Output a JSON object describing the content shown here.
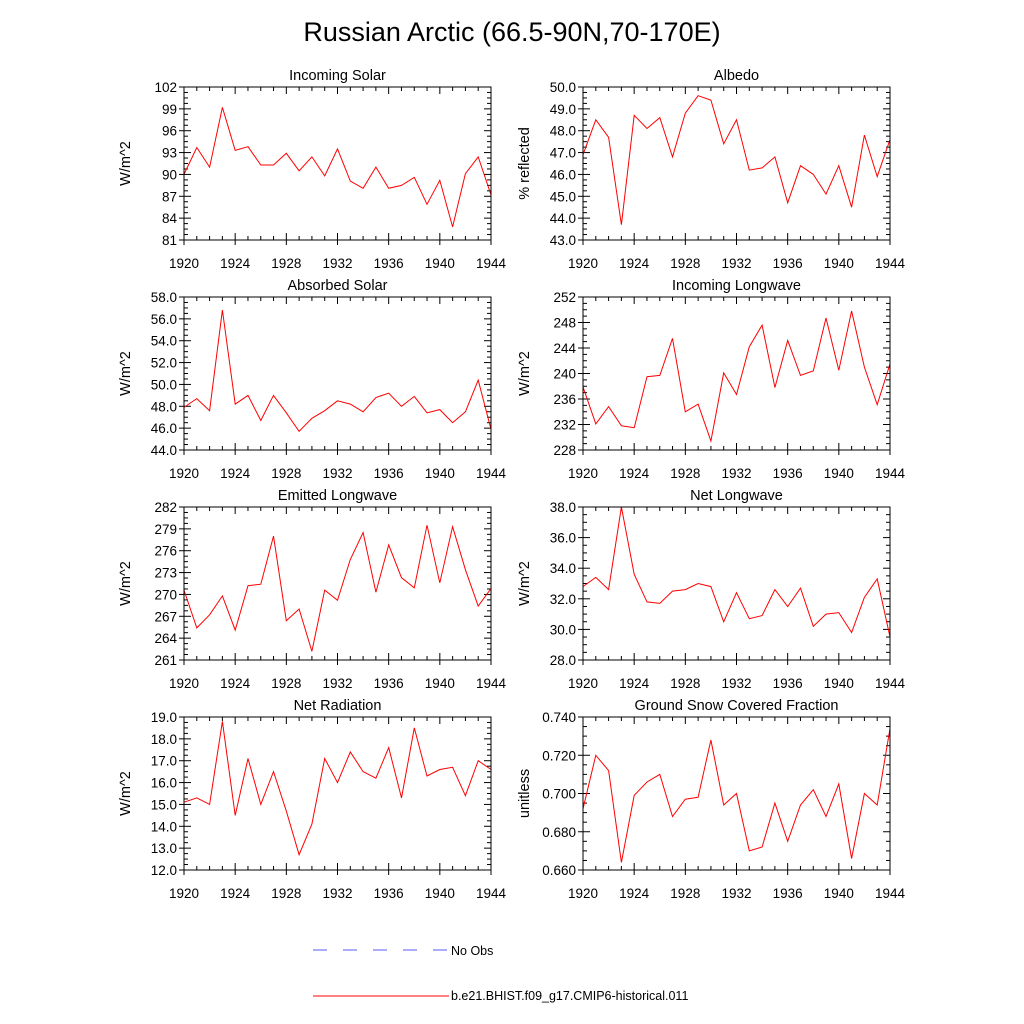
{
  "title": "Russian Arctic (66.5-90N,70-170E)",
  "legend": [
    {
      "label": "No Obs",
      "color": "#5a5aff",
      "dash": true
    },
    {
      "label": "b.e21.BHIST.f09_g17.CMIP6-historical.011",
      "color": "#ff0000",
      "dash": false
    }
  ],
  "line_color": "#ff0000",
  "chart_data": [
    {
      "type": "line",
      "title": "Incoming Solar",
      "xlabel": "",
      "ylabel": "W/m^2",
      "xlim": [
        1920,
        1944
      ],
      "ylim": [
        81,
        102
      ],
      "xticks": [
        "1920",
        "1924",
        "1928",
        "1932",
        "1936",
        "1940",
        "1944"
      ],
      "yticks": [
        "81",
        "84",
        "87",
        "90",
        "93",
        "96",
        "99",
        "102"
      ],
      "x": [
        1920,
        1921,
        1922,
        1923,
        1924,
        1925,
        1926,
        1927,
        1928,
        1929,
        1930,
        1931,
        1932,
        1933,
        1934,
        1935,
        1936,
        1937,
        1938,
        1939,
        1940,
        1941,
        1942,
        1943,
        1944
      ],
      "series": [
        {
          "name": "b.e21.BHIST.f09_g17.CMIP6-historical.011",
          "values": [
            90.0,
            93.7,
            91.0,
            99.2,
            93.3,
            93.8,
            91.3,
            91.3,
            92.9,
            90.5,
            92.4,
            89.8,
            93.5,
            89.1,
            88.1,
            91.0,
            88.1,
            88.5,
            89.6,
            85.9,
            89.2,
            82.8,
            90.1,
            92.4,
            87.2
          ]
        }
      ]
    },
    {
      "type": "line",
      "title": "Albedo",
      "xlabel": "",
      "ylabel": "% reflected",
      "xlim": [
        1920,
        1944
      ],
      "ylim": [
        43.0,
        50.0
      ],
      "xticks": [
        "1920",
        "1924",
        "1928",
        "1932",
        "1936",
        "1940",
        "1944"
      ],
      "yticks": [
        "43.0",
        "44.0",
        "45.0",
        "46.0",
        "47.0",
        "48.0",
        "49.0",
        "50.0"
      ],
      "x": [
        1920,
        1921,
        1922,
        1923,
        1924,
        1925,
        1926,
        1927,
        1928,
        1929,
        1930,
        1931,
        1932,
        1933,
        1934,
        1935,
        1936,
        1937,
        1938,
        1939,
        1940,
        1941,
        1942,
        1943,
        1944
      ],
      "series": [
        {
          "name": "b.e21.BHIST.f09_g17.CMIP6-historical.011",
          "values": [
            46.9,
            48.5,
            47.7,
            43.7,
            48.7,
            48.1,
            48.6,
            46.8,
            48.8,
            49.6,
            49.4,
            47.4,
            48.5,
            46.2,
            46.3,
            46.8,
            44.7,
            46.4,
            46.0,
            45.1,
            46.4,
            44.5,
            47.8,
            45.9,
            47.6
          ]
        }
      ]
    },
    {
      "type": "line",
      "title": "Absorbed Solar",
      "xlabel": "",
      "ylabel": "W/m^2",
      "xlim": [
        1920,
        1944
      ],
      "ylim": [
        44.0,
        58.0
      ],
      "xticks": [
        "1920",
        "1924",
        "1928",
        "1932",
        "1936",
        "1940",
        "1944"
      ],
      "yticks": [
        "44.0",
        "46.0",
        "48.0",
        "50.0",
        "52.0",
        "54.0",
        "56.0",
        "58.0"
      ],
      "x": [
        1920,
        1921,
        1922,
        1923,
        1924,
        1925,
        1926,
        1927,
        1928,
        1929,
        1930,
        1931,
        1932,
        1933,
        1934,
        1935,
        1936,
        1937,
        1938,
        1939,
        1940,
        1941,
        1942,
        1943,
        1944
      ],
      "series": [
        {
          "name": "b.e21.BHIST.f09_g17.CMIP6-historical.011",
          "values": [
            47.9,
            48.7,
            47.6,
            56.8,
            48.2,
            49.0,
            46.7,
            49.0,
            47.4,
            45.7,
            46.9,
            47.6,
            48.5,
            48.2,
            47.5,
            48.8,
            49.2,
            48.0,
            48.9,
            47.4,
            47.7,
            46.5,
            47.5,
            50.4,
            45.9
          ]
        }
      ]
    },
    {
      "type": "line",
      "title": "Incoming Longwave",
      "xlabel": "",
      "ylabel": "W/m^2",
      "xlim": [
        1920,
        1944
      ],
      "ylim": [
        228,
        252
      ],
      "xticks": [
        "1920",
        "1924",
        "1928",
        "1932",
        "1936",
        "1940",
        "1944"
      ],
      "yticks": [
        "228",
        "232",
        "236",
        "240",
        "244",
        "248",
        "252"
      ],
      "x": [
        1920,
        1921,
        1922,
        1923,
        1924,
        1925,
        1926,
        1927,
        1928,
        1929,
        1930,
        1931,
        1932,
        1933,
        1934,
        1935,
        1936,
        1937,
        1938,
        1939,
        1940,
        1941,
        1942,
        1943,
        1944
      ],
      "series": [
        {
          "name": "b.e21.BHIST.f09_g17.CMIP6-historical.011",
          "values": [
            237.9,
            232.1,
            234.8,
            231.8,
            231.5,
            239.5,
            239.7,
            245.5,
            234.0,
            235.2,
            229.4,
            240.1,
            236.7,
            244.2,
            247.6,
            237.8,
            245.2,
            239.7,
            240.4,
            248.7,
            240.5,
            249.8,
            241.0,
            235.1,
            241.5
          ]
        }
      ]
    },
    {
      "type": "line",
      "title": "Emitted Longwave",
      "xlabel": "",
      "ylabel": "W/m^2",
      "xlim": [
        1920,
        1944
      ],
      "ylim": [
        261,
        282
      ],
      "xticks": [
        "1920",
        "1924",
        "1928",
        "1932",
        "1936",
        "1940",
        "1944"
      ],
      "yticks": [
        "261",
        "264",
        "267",
        "270",
        "273",
        "276",
        "279",
        "282"
      ],
      "x": [
        1920,
        1921,
        1922,
        1923,
        1924,
        1925,
        1926,
        1927,
        1928,
        1929,
        1930,
        1931,
        1932,
        1933,
        1934,
        1935,
        1936,
        1937,
        1938,
        1939,
        1940,
        1941,
        1942,
        1943,
        1944
      ],
      "series": [
        {
          "name": "b.e21.BHIST.f09_g17.CMIP6-historical.011",
          "values": [
            270.6,
            265.4,
            267.2,
            269.8,
            265.1,
            271.2,
            271.4,
            278.0,
            266.4,
            268.0,
            262.2,
            270.6,
            269.2,
            274.8,
            278.5,
            270.3,
            276.8,
            272.3,
            270.9,
            279.5,
            271.6,
            279.3,
            273.4,
            268.4,
            270.8
          ]
        }
      ]
    },
    {
      "type": "line",
      "title": "Net Longwave",
      "xlabel": "",
      "ylabel": "W/m^2",
      "xlim": [
        1920,
        1944
      ],
      "ylim": [
        28.0,
        38.0
      ],
      "xticks": [
        "1920",
        "1924",
        "1928",
        "1932",
        "1936",
        "1940",
        "1944"
      ],
      "yticks": [
        "28.0",
        "30.0",
        "32.0",
        "34.0",
        "36.0",
        "38.0"
      ],
      "x": [
        1920,
        1921,
        1922,
        1923,
        1924,
        1925,
        1926,
        1927,
        1928,
        1929,
        1930,
        1931,
        1932,
        1933,
        1934,
        1935,
        1936,
        1937,
        1938,
        1939,
        1940,
        1941,
        1942,
        1943,
        1944
      ],
      "series": [
        {
          "name": "b.e21.BHIST.f09_g17.CMIP6-historical.011",
          "values": [
            32.8,
            33.4,
            32.6,
            38.0,
            33.6,
            31.8,
            31.7,
            32.5,
            32.6,
            33.0,
            32.8,
            30.5,
            32.4,
            30.7,
            30.9,
            32.6,
            31.5,
            32.7,
            30.2,
            31.0,
            31.1,
            29.8,
            32.1,
            33.3,
            29.5
          ]
        }
      ]
    },
    {
      "type": "line",
      "title": "Net Radiation",
      "xlabel": "",
      "ylabel": "W/m^2",
      "xlim": [
        1920,
        1944
      ],
      "ylim": [
        12.0,
        19.0
      ],
      "xticks": [
        "1920",
        "1924",
        "1928",
        "1932",
        "1936",
        "1940",
        "1944"
      ],
      "yticks": [
        "12.0",
        "13.0",
        "14.0",
        "15.0",
        "16.0",
        "17.0",
        "18.0",
        "19.0"
      ],
      "x": [
        1920,
        1921,
        1922,
        1923,
        1924,
        1925,
        1926,
        1927,
        1928,
        1929,
        1930,
        1931,
        1932,
        1933,
        1934,
        1935,
        1936,
        1937,
        1938,
        1939,
        1940,
        1941,
        1942,
        1943,
        1944
      ],
      "series": [
        {
          "name": "b.e21.BHIST.f09_g17.CMIP6-historical.011",
          "values": [
            15.1,
            15.3,
            15.0,
            18.8,
            14.5,
            17.1,
            15.0,
            16.5,
            14.7,
            12.7,
            14.1,
            17.1,
            16.0,
            17.4,
            16.5,
            16.2,
            17.6,
            15.3,
            18.5,
            16.3,
            16.6,
            16.7,
            15.4,
            17.0,
            16.6
          ]
        }
      ]
    },
    {
      "type": "line",
      "title": "Ground Snow Covered Fraction",
      "xlabel": "",
      "ylabel": "unitless",
      "xlim": [
        1920,
        1944
      ],
      "ylim": [
        0.66,
        0.74
      ],
      "xticks": [
        "1920",
        "1924",
        "1928",
        "1932",
        "1936",
        "1940",
        "1944"
      ],
      "yticks": [
        "0.660",
        "0.680",
        "0.700",
        "0.720",
        "0.740"
      ],
      "x": [
        1920,
        1921,
        1922,
        1923,
        1924,
        1925,
        1926,
        1927,
        1928,
        1929,
        1930,
        1931,
        1932,
        1933,
        1934,
        1935,
        1936,
        1937,
        1938,
        1939,
        1940,
        1941,
        1942,
        1943,
        1944
      ],
      "series": [
        {
          "name": "b.e21.BHIST.f09_g17.CMIP6-historical.011",
          "values": [
            0.692,
            0.72,
            0.712,
            0.664,
            0.699,
            0.706,
            0.71,
            0.688,
            0.697,
            0.698,
            0.728,
            0.694,
            0.7,
            0.67,
            0.672,
            0.695,
            0.675,
            0.694,
            0.702,
            0.688,
            0.705,
            0.666,
            0.7,
            0.694,
            0.734
          ]
        }
      ]
    }
  ]
}
